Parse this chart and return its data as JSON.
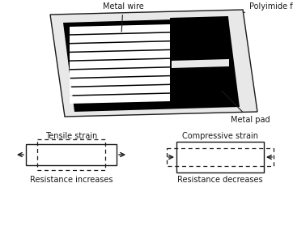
{
  "bg_color": "#ffffff",
  "label_color": "#1a1a1a",
  "metal_wire_label": "Metal wire",
  "polyimide_film_label": "Polyimide film",
  "metal_pad_label": "Metal pad",
  "tensile_label": "Tensile strain",
  "tensile_sub": "Resistance increases",
  "compressive_label": "Compressive strain",
  "compressive_sub": "Resistance decreases",
  "font_size": 7.0,
  "n_stripes": 9,
  "figure_width": 3.62,
  "figure_height": 2.84,
  "dpi": 100
}
